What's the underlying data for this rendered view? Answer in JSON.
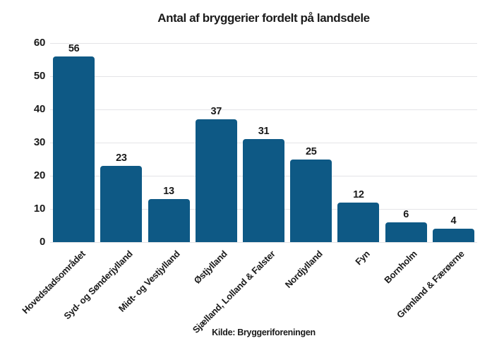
{
  "chart_data": {
    "type": "bar",
    "title": "Antal af bryggerier fordelt på landsdele",
    "categories": [
      "Hovedstadsområdet",
      "Syd- og Sønderjylland",
      "Midt- og Vestjylland",
      "Østjylland",
      "Sjælland, Lolland & Falster",
      "Nordjylland",
      "Fyn",
      "Bornholm",
      "Grønland & Færøerne"
    ],
    "values": [
      56,
      23,
      13,
      37,
      31,
      25,
      12,
      6,
      4
    ],
    "xlabel": "",
    "ylabel": "",
    "ylim": [
      0,
      60
    ],
    "yticks": [
      0,
      10,
      20,
      30,
      40,
      50,
      60
    ],
    "grid": "horizontal-only",
    "legend": "none",
    "source_label": "Kilde: Bryggeriforeningen",
    "colors": {
      "bar": "#0E5985",
      "grid": "#e4e4e7",
      "text": "#1a1a1a",
      "background": "#ffffff"
    }
  }
}
